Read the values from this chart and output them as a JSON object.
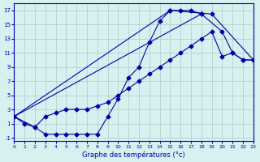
{
  "xlabel": "Graphe des températures (°c)",
  "bg_color": "#d8f0f0",
  "grid_color": "#b0c8c8",
  "line_color": "#0000aa",
  "xlim": [
    0,
    23
  ],
  "ylim": [
    -1.5,
    18
  ],
  "xticks": [
    0,
    1,
    2,
    3,
    4,
    5,
    6,
    7,
    8,
    9,
    10,
    11,
    12,
    13,
    14,
    15,
    16,
    17,
    18,
    19,
    20,
    21,
    22,
    23
  ],
  "yticks": [
    -1,
    1,
    3,
    5,
    7,
    9,
    11,
    13,
    15,
    17
  ],
  "curve1_x": [
    0,
    1,
    2,
    3,
    4,
    5,
    6,
    7,
    8,
    9,
    10,
    11,
    12,
    13,
    14,
    15,
    16,
    17,
    18
  ],
  "curve1_y": [
    2,
    1,
    0.5,
    -0.5,
    -0.5,
    -0.5,
    -0.5,
    -0.5,
    -0.5,
    2,
    4.5,
    7.5,
    9,
    12.5,
    15.5,
    17,
    17,
    17,
    16.5
  ],
  "curve2_x": [
    0,
    2,
    3,
    4,
    5,
    6,
    7,
    8,
    9,
    10,
    11,
    12,
    13,
    14,
    15,
    16,
    17,
    18,
    19,
    20,
    21,
    22,
    23
  ],
  "curve2_y": [
    2,
    0.5,
    2,
    2.5,
    3,
    3,
    3,
    3.5,
    4,
    5,
    6,
    7,
    8,
    9,
    10,
    11,
    12,
    13,
    14,
    10.5,
    11,
    10,
    10
  ],
  "curve3_x": [
    0,
    15,
    19,
    23
  ],
  "curve3_y": [
    2,
    17,
    16.5,
    10
  ],
  "curve4_x": [
    0,
    18,
    20,
    21,
    22,
    23
  ],
  "curve4_y": [
    2,
    16.5,
    14,
    11,
    10,
    10
  ]
}
